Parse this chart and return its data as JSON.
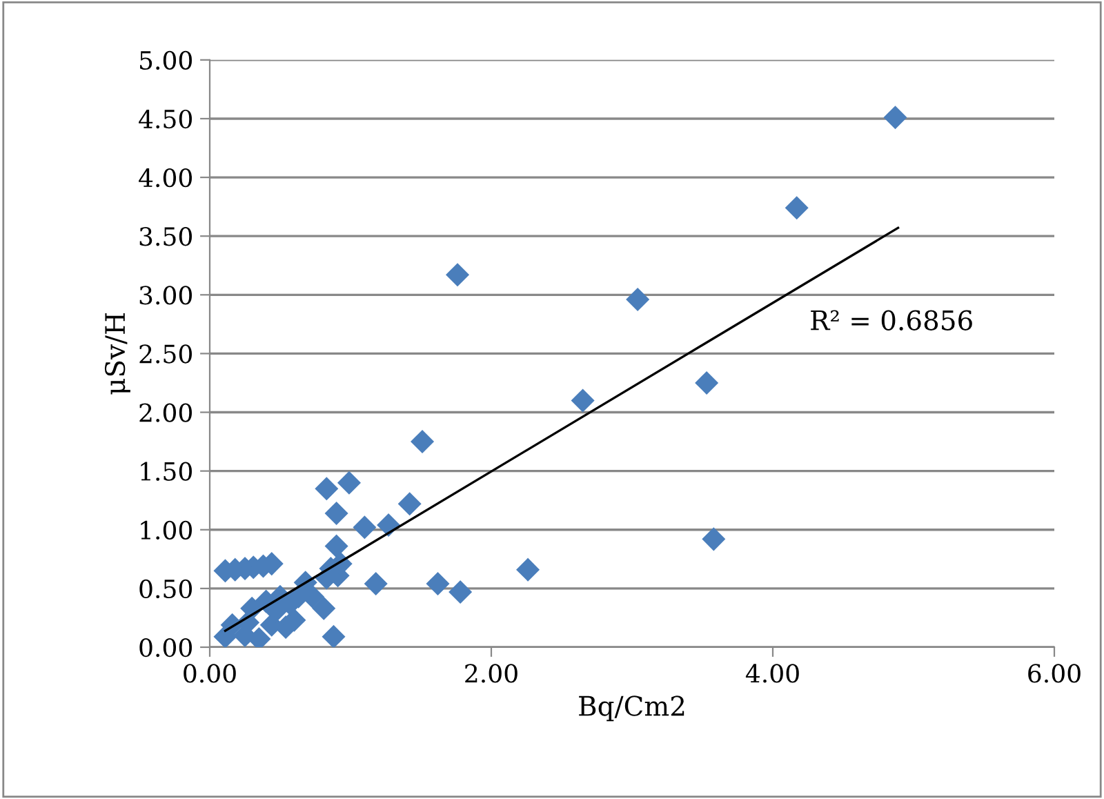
{
  "chart_data": {
    "type": "scatter",
    "xlabel": "Bq/Cm2",
    "ylabel": "μSv/H",
    "marker": "diamond",
    "grid": "y",
    "legend": false,
    "xlim": [
      0,
      6
    ],
    "xticks": [
      {
        "value": 0,
        "label": "0.00"
      },
      {
        "value": 2,
        "label": "2.00"
      },
      {
        "value": 4,
        "label": "4.00"
      },
      {
        "value": 6,
        "label": "6.00"
      }
    ],
    "ylim": [
      0,
      5
    ],
    "yticks": [
      {
        "value": 0,
        "label": "0.00"
      },
      {
        "value": 0.5,
        "label": "0.50"
      },
      {
        "value": 1,
        "label": "1.00"
      },
      {
        "value": 1.5,
        "label": "1.50"
      },
      {
        "value": 2,
        "label": "2.00"
      },
      {
        "value": 2.5,
        "label": "2.50"
      },
      {
        "value": 3,
        "label": "3.00"
      },
      {
        "value": 3.5,
        "label": "3.50"
      },
      {
        "value": 4,
        "label": "4.00"
      },
      {
        "value": 4.5,
        "label": "4.50"
      },
      {
        "value": 5,
        "label": "5.00"
      }
    ],
    "annotations": [
      "R² = 0.6856"
    ],
    "series": [
      {
        "color": "#4a7ebb",
        "x": [
          4.87,
          4.17,
          1.76,
          3.04,
          2.65,
          3.53,
          3.58,
          1.51,
          2.26,
          1.78,
          1.62,
          1.42,
          1.27,
          1.1,
          0.99,
          0.83,
          0.9,
          0.9,
          1.18,
          0.88,
          0.81,
          0.11,
          0.18,
          0.25,
          0.31,
          0.38,
          0.44,
          0.11,
          0.25,
          0.35,
          0.3,
          0.4,
          0.5,
          0.6,
          0.54,
          0.44,
          0.47,
          0.57,
          0.68,
          0.83,
          0.91,
          0.93,
          0.86,
          0.73,
          0.63,
          0.27,
          0.16
        ],
        "values": [
          4.51,
          3.74,
          3.17,
          2.96,
          2.1,
          2.25,
          0.92,
          1.75,
          0.66,
          0.47,
          0.54,
          1.22,
          1.04,
          1.02,
          1.4,
          1.35,
          1.14,
          0.86,
          0.54,
          0.09,
          0.33,
          0.65,
          0.66,
          0.67,
          0.68,
          0.69,
          0.71,
          0.09,
          0.1,
          0.07,
          0.33,
          0.39,
          0.43,
          0.23,
          0.17,
          0.19,
          0.31,
          0.37,
          0.55,
          0.59,
          0.61,
          0.71,
          0.67,
          0.43,
          0.43,
          0.21,
          0.19
        ]
      },
      {
        "type": "line",
        "marker": "none",
        "color": "#000000",
        "x": [
          0.11,
          4.89
        ],
        "values": [
          0.14,
          3.57
        ]
      }
    ]
  }
}
